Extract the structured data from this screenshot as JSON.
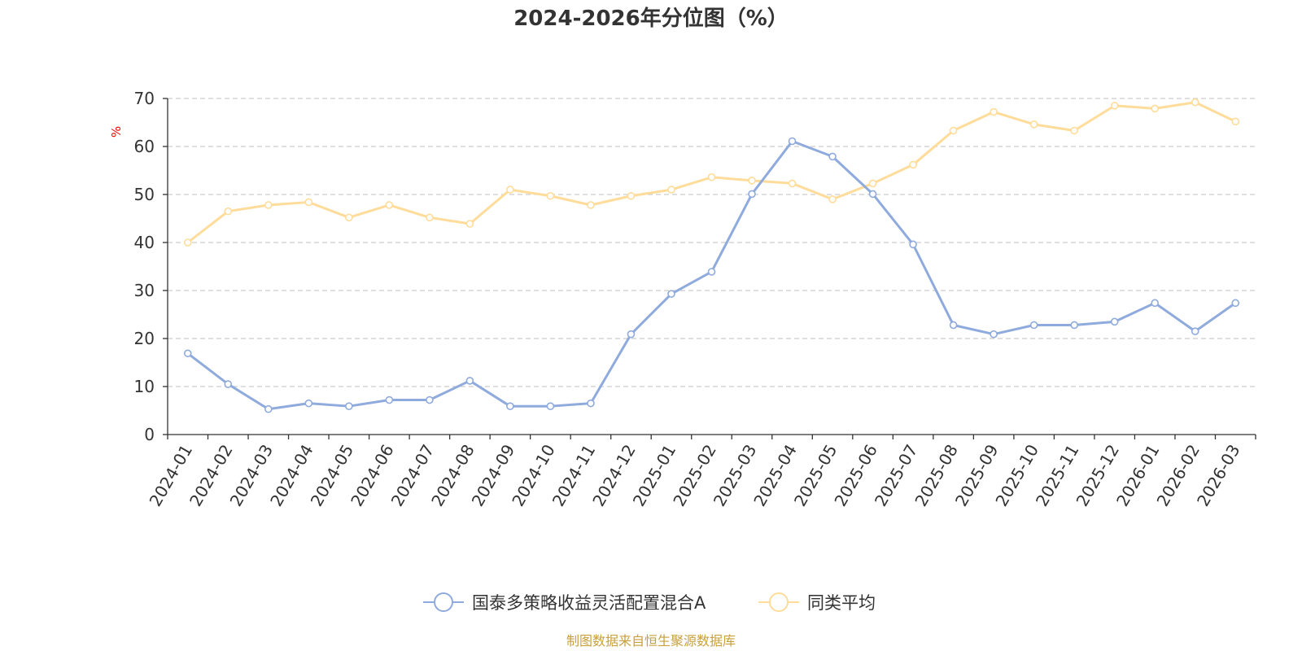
{
  "chart_data": {
    "type": "line",
    "title": "2024-2026年分位图（%）",
    "ylabel": "%",
    "ylim": [
      0,
      70
    ],
    "yticks": [
      0,
      10,
      20,
      30,
      40,
      50,
      60,
      70
    ],
    "grid": true,
    "legend_position": "bottom-center",
    "categories": [
      "2024-01",
      "2024-02",
      "2024-03",
      "2024-04",
      "2024-05",
      "2024-06",
      "2024-07",
      "2024-08",
      "2024-09",
      "2024-10",
      "2024-11",
      "2024-12",
      "2025-01",
      "2025-02",
      "2025-03",
      "2025-04",
      "2025-05",
      "2025-06",
      "2025-07",
      "2025-08",
      "2025-09",
      "2025-10",
      "2025-11",
      "2025-12",
      "2026-01",
      "2026-02",
      "2026-03"
    ],
    "series": [
      {
        "name": "国泰多策略收益灵活配置混合A",
        "color": "#8faadc",
        "values": [
          16.9,
          10.5,
          5.3,
          6.5,
          5.9,
          7.2,
          7.2,
          11.2,
          5.9,
          5.9,
          6.5,
          20.9,
          29.3,
          33.9,
          50.1,
          61.1,
          57.9,
          50.1,
          39.6,
          22.8,
          20.9,
          22.8,
          22.8,
          23.5,
          27.4,
          21.5,
          27.4
        ]
      },
      {
        "name": "同类平均",
        "color": "#ffdc9a",
        "values": [
          40.0,
          46.5,
          47.8,
          48.4,
          45.2,
          47.8,
          45.2,
          43.9,
          51.0,
          49.7,
          47.8,
          49.7,
          51.0,
          53.6,
          52.9,
          52.3,
          49.0,
          52.3,
          56.2,
          63.3,
          67.2,
          64.6,
          63.3,
          68.5,
          67.9,
          69.2,
          65.2
        ]
      }
    ],
    "source": "制图数据来自恒生聚源数据库",
    "colors": {
      "ylabel": "#ff0000",
      "source": "#c8a03c",
      "axis": "#333333",
      "grid": "#cccccc"
    }
  }
}
